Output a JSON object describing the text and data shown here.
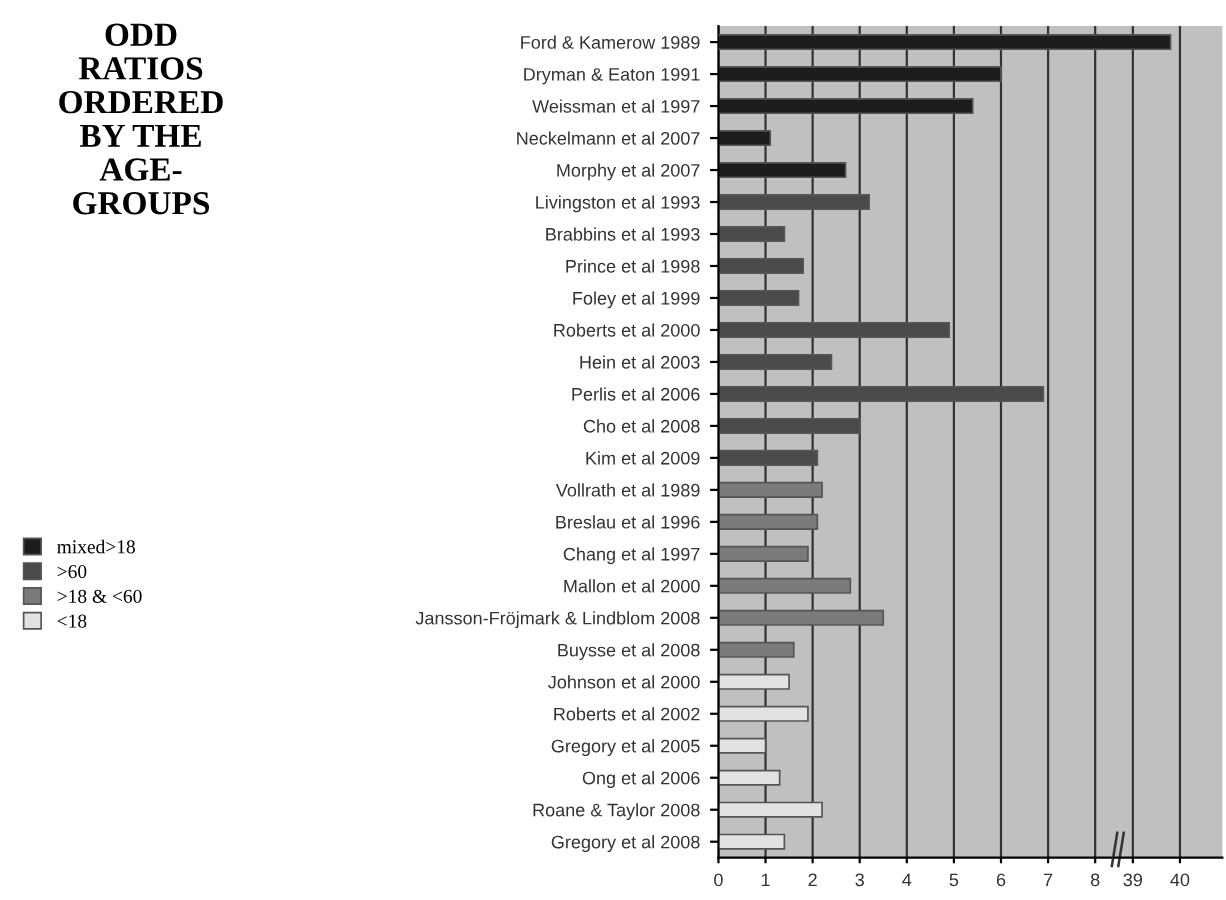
{
  "chart_data": [
    {
      "type": "bar",
      "orientation": "horizontal",
      "title": "ODD\nRATIOS\nORDERED\nBY THE\nAGE-\nGROUPS",
      "categories": [
        "Ford & Kamerow 1989",
        "Dryman & Eaton 1991",
        "Weissman et al 1997",
        "Neckelmann et al 2007",
        "Morphy et al 2007",
        "Livingston et al 1993",
        "Brabbins et al 1993",
        "Prince et al 1998",
        "Foley et al 1999",
        "Roberts et al 2000",
        "Hein et al 2003",
        "Perlis et al 2006",
        "Cho et al 2008",
        "Kim et al 2009",
        "Vollrath et al 1989",
        "Breslau et al 1996",
        "Chang et al 1997",
        "Mallon et al 2000",
        "Jansson-Fröjmark & Lindblom 2008",
        "Buysse et al 2008",
        "Johnson et al 2000",
        "Roberts et al 2002",
        "Gregory et al 2005",
        "Ong et al 2006",
        "Roane & Taylor 2008",
        "Gregory et al 2008"
      ],
      "series": [
        {
          "name": "mixed>18",
          "color": "#1c1c1c",
          "values": [
            null,
            6.0,
            5.4,
            1.1,
            2.7,
            null,
            null,
            null,
            null,
            null,
            null,
            null,
            null,
            null,
            null,
            null,
            null,
            null,
            null,
            null,
            null,
            null,
            null,
            null,
            null,
            null
          ]
        },
        {
          "name": ">60",
          "color": "#4a4a4a",
          "values": [
            null,
            null,
            null,
            null,
            null,
            3.2,
            1.4,
            1.8,
            1.7,
            4.9,
            2.4,
            6.9,
            3.0,
            2.1,
            null,
            null,
            null,
            null,
            null,
            null,
            null,
            null,
            null,
            null,
            null,
            null
          ]
        },
        {
          "name": ">18 & <60",
          "color": "#7a7a7a",
          "values": [
            null,
            null,
            null,
            null,
            null,
            null,
            null,
            null,
            null,
            null,
            null,
            null,
            null,
            null,
            2.2,
            2.1,
            1.9,
            2.8,
            3.5,
            1.6,
            null,
            null,
            null,
            null,
            null,
            null
          ]
        },
        {
          "name": "<18",
          "color": "#e2e2e2",
          "values": [
            null,
            null,
            null,
            null,
            null,
            null,
            null,
            null,
            null,
            null,
            null,
            null,
            null,
            null,
            null,
            null,
            null,
            null,
            null,
            null,
            1.5,
            1.9,
            1.0,
            1.3,
            2.2,
            1.4
          ]
        }
      ],
      "xlim": [
        0,
        8.4
      ],
      "xticks": [
        0,
        1,
        2,
        3,
        4,
        5,
        6,
        7,
        8
      ],
      "grid": "x",
      "legend": "left"
    },
    {
      "type": "bar",
      "orientation": "horizontal",
      "categories": [
        null,
        null,
        null,
        null,
        null,
        null,
        null,
        null,
        null,
        null,
        null,
        null,
        null,
        null,
        null,
        null,
        null,
        null,
        null,
        null,
        null,
        null,
        null,
        null,
        null,
        null
      ],
      "series": [
        {
          "color": "#1c1c1c",
          "values": [
            39.8,
            null,
            null,
            null,
            null,
            null,
            null,
            null,
            null,
            null,
            null,
            null,
            null,
            null,
            null,
            null,
            null,
            null,
            null,
            null,
            null,
            null,
            null,
            null,
            null,
            null
          ]
        }
      ],
      "xlim": [
        38.6,
        40.9
      ],
      "xticks": [
        39,
        40
      ],
      "grid": "x",
      "tick_labels": "x"
    }
  ]
}
